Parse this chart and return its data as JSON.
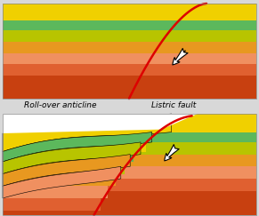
{
  "bg_color": "#d8d8d8",
  "fault_color": "#dd0000",
  "fault_linewidth": 1.8,
  "label_rollover": "Roll-over anticline",
  "label_listric": "Listric fault",
  "label_fontsize": 6.5,
  "layer_colors": [
    "#f0d000",
    "#5cb85c",
    "#b8c400",
    "#e89820",
    "#f09060",
    "#e06030",
    "#c84010"
  ],
  "arrow_color_fill": "#ffffff",
  "arrow_color_edge": "#000000"
}
